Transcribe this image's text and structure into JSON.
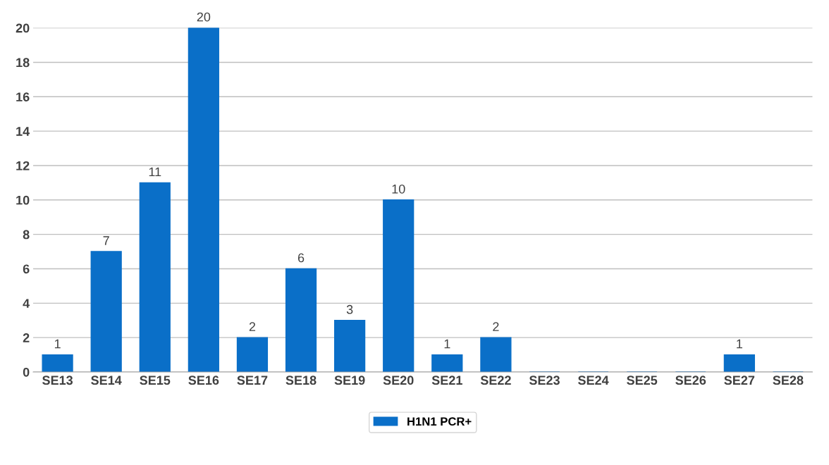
{
  "chart_data": {
    "type": "bar",
    "categories": [
      "SE13",
      "SE14",
      "SE15",
      "SE16",
      "SE17",
      "SE18",
      "SE19",
      "SE20",
      "SE21",
      "SE22",
      "SE23",
      "SE24",
      "SE25",
      "SE26",
      "SE27",
      "SE28"
    ],
    "series": [
      {
        "name": "H1N1 PCR+",
        "color": "#0a6fc8",
        "values": [
          1,
          7,
          11,
          20,
          2,
          6,
          3,
          10,
          1,
          2,
          0,
          0,
          0,
          0,
          1,
          0
        ],
        "value_labels": [
          "1",
          "7",
          "11",
          "20",
          "2",
          "6",
          "3",
          "10",
          "1",
          "2",
          null,
          null,
          null,
          null,
          "1",
          null
        ]
      }
    ],
    "ylim": [
      0,
      20
    ],
    "yticks": [
      0,
      2,
      4,
      6,
      8,
      10,
      12,
      14,
      16,
      18,
      20
    ],
    "grid": "y",
    "legend": "bottom"
  }
}
